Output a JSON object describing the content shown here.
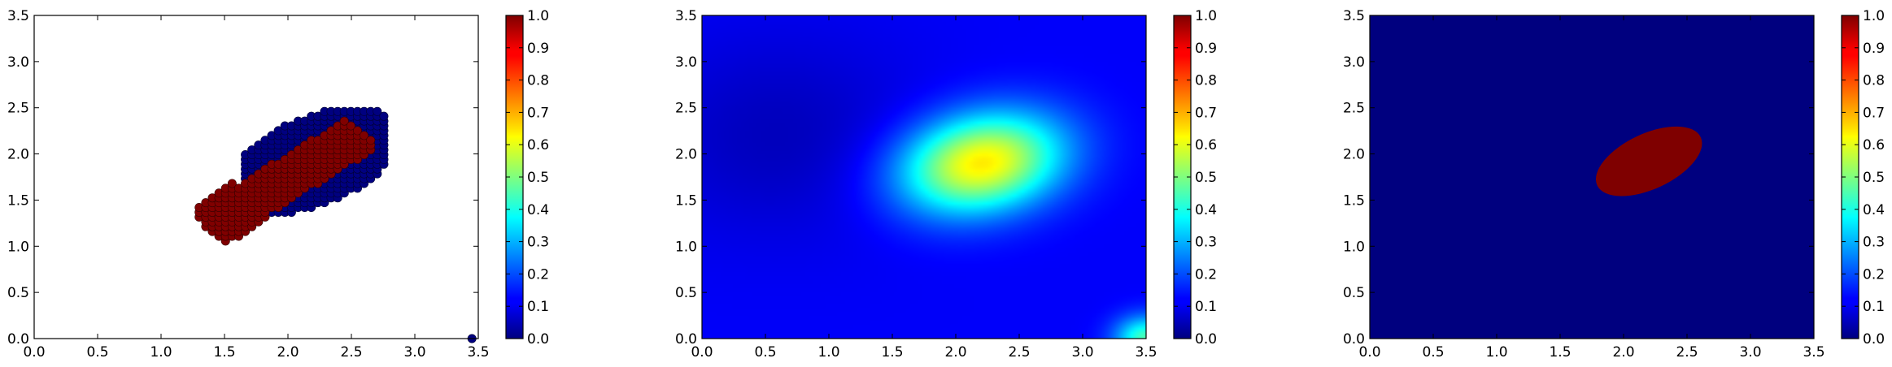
{
  "chart_data": [
    {
      "type": "scatter",
      "title": "",
      "xlabel": "",
      "ylabel": "",
      "xlim": [
        0,
        3.5
      ],
      "ylim": [
        0,
        3.5
      ],
      "xticks": [
        "0.0",
        "0.5",
        "1.0",
        "1.5",
        "2.0",
        "2.5",
        "3.0",
        "3.5"
      ],
      "yticks": [
        "0.0",
        "0.5",
        "1.0",
        "1.5",
        "2.0",
        "2.5",
        "3.0",
        "3.5"
      ],
      "grid": false,
      "background": "#ffffff",
      "colormap": "jet",
      "point_color_values": [
        0,
        1
      ],
      "series": [
        {
          "value": 0,
          "color": "#00007f",
          "region": "outer ring around diagonal band",
          "x_range": [
            1.65,
            2.75
          ],
          "y_range": [
            1.3,
            2.55
          ]
        },
        {
          "value": 1,
          "color": "#7f0000",
          "region": "diagonal band",
          "x_range": [
            1.35,
            2.55
          ],
          "y_range": [
            0.95,
            2.35
          ]
        },
        {
          "value": 0,
          "color": "#00007f",
          "x": [
            3.45
          ],
          "y": [
            0.0
          ]
        }
      ],
      "colorbar": {
        "min": 0.0,
        "max": 1.0,
        "ticks": [
          "0.0",
          "0.1",
          "0.2",
          "0.3",
          "0.4",
          "0.5",
          "0.6",
          "0.7",
          "0.8",
          "0.9",
          "1.0"
        ]
      }
    },
    {
      "type": "heatmap",
      "title": "",
      "xlabel": "",
      "ylabel": "",
      "xlim": [
        0,
        3.5
      ],
      "ylim": [
        0,
        3.5
      ],
      "xticks": [
        "0.0",
        "0.5",
        "1.0",
        "1.5",
        "2.0",
        "2.5",
        "3.0",
        "3.5"
      ],
      "yticks": [
        "0.0",
        "0.5",
        "1.0",
        "1.5",
        "2.0",
        "2.5",
        "3.0",
        "3.5"
      ],
      "grid": false,
      "colormap": "jet",
      "field": {
        "peak_center": [
          2.2,
          1.9
        ],
        "peak_value": 0.65,
        "base_value": 0.12,
        "low_corner_value": 0.05,
        "bottom_right_corner_value": 0.45
      },
      "colorbar": {
        "min": 0.0,
        "max": 1.0,
        "ticks": [
          "0.0",
          "0.1",
          "0.2",
          "0.3",
          "0.4",
          "0.5",
          "0.6",
          "0.7",
          "0.8",
          "0.9",
          "1.0"
        ]
      }
    },
    {
      "type": "heatmap",
      "title": "",
      "xlabel": "",
      "ylabel": "",
      "xlim": [
        0,
        3.5
      ],
      "ylim": [
        0,
        3.5
      ],
      "xticks": [
        "0.0",
        "0.5",
        "1.0",
        "1.5",
        "2.0",
        "2.5",
        "3.0",
        "3.5"
      ],
      "yticks": [
        "0.0",
        "0.5",
        "1.0",
        "1.5",
        "2.0",
        "2.5",
        "3.0",
        "3.5"
      ],
      "grid": false,
      "colormap": "jet",
      "field": {
        "background_value": 0,
        "background_color": "#00007f",
        "ellipse": {
          "cx": 2.2,
          "cy": 1.92,
          "rx": 0.45,
          "ry": 0.3,
          "angle_deg": 25,
          "value": 1,
          "color": "#7f0000"
        }
      },
      "colorbar": {
        "min": 0.0,
        "max": 1.0,
        "ticks": [
          "0.0",
          "0.1",
          "0.2",
          "0.3",
          "0.4",
          "0.5",
          "0.6",
          "0.7",
          "0.8",
          "0.9",
          "1.0"
        ]
      }
    }
  ]
}
